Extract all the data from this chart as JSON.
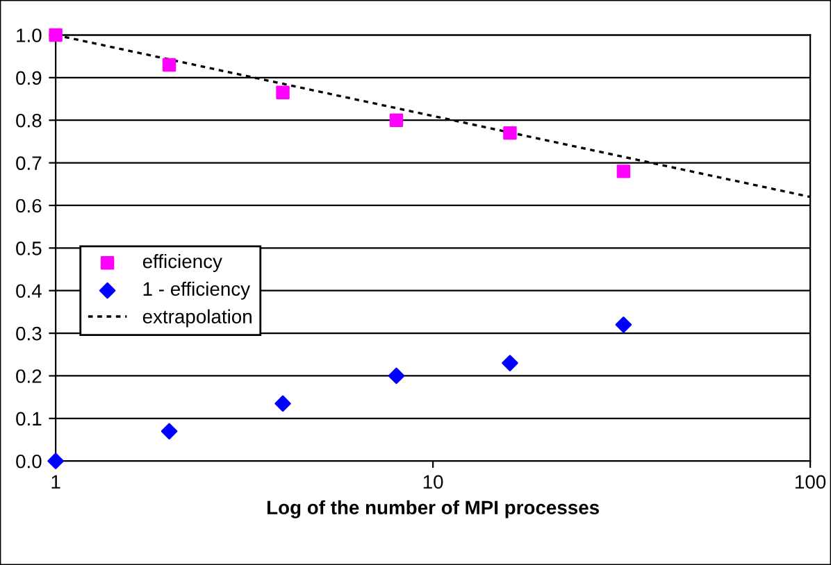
{
  "chart_data": {
    "type": "scatter",
    "xlabel": "Log of the number of MPI processes",
    "log": "x",
    "xlim": [
      1,
      100
    ],
    "xticks": [
      1,
      10,
      100
    ],
    "ylim": [
      0,
      1
    ],
    "yticks": [
      {
        "value": 0,
        "label": "0.0"
      },
      {
        "value": 0.1,
        "label": "0.1"
      },
      {
        "value": 0.2,
        "label": "0.2"
      },
      {
        "value": 0.3,
        "label": "0.3"
      },
      {
        "value": 0.4,
        "label": "0.4"
      },
      {
        "value": 0.5,
        "label": "0.5"
      },
      {
        "value": 0.6,
        "label": "0.6"
      },
      {
        "value": 0.7,
        "label": "0.7"
      },
      {
        "value": 0.8,
        "label": "0.8"
      },
      {
        "value": 0.9,
        "label": "0.9"
      },
      {
        "value": 1,
        "label": "1.0"
      }
    ],
    "grid": "y",
    "legend": "left",
    "series": [
      {
        "name": "efficiency",
        "marker": "square",
        "color": "#ff00ff",
        "x": [
          1,
          2,
          4,
          8,
          16,
          32
        ],
        "values": [
          1.0,
          0.93,
          0.865,
          0.8,
          0.77,
          0.68
        ]
      },
      {
        "name": "1 - efficiency",
        "marker": "diamond",
        "color": "#0000ff",
        "x": [
          1,
          2,
          4,
          8,
          16,
          32
        ],
        "values": [
          0.0,
          0.07,
          0.135,
          0.2,
          0.23,
          0.32
        ]
      },
      {
        "name": "extrapolation",
        "type": "line",
        "marker": "none",
        "line_style": "dotted",
        "color": "#000000",
        "x": [
          1,
          10,
          100
        ],
        "values": [
          1.0,
          0.81,
          0.62
        ]
      }
    ]
  }
}
